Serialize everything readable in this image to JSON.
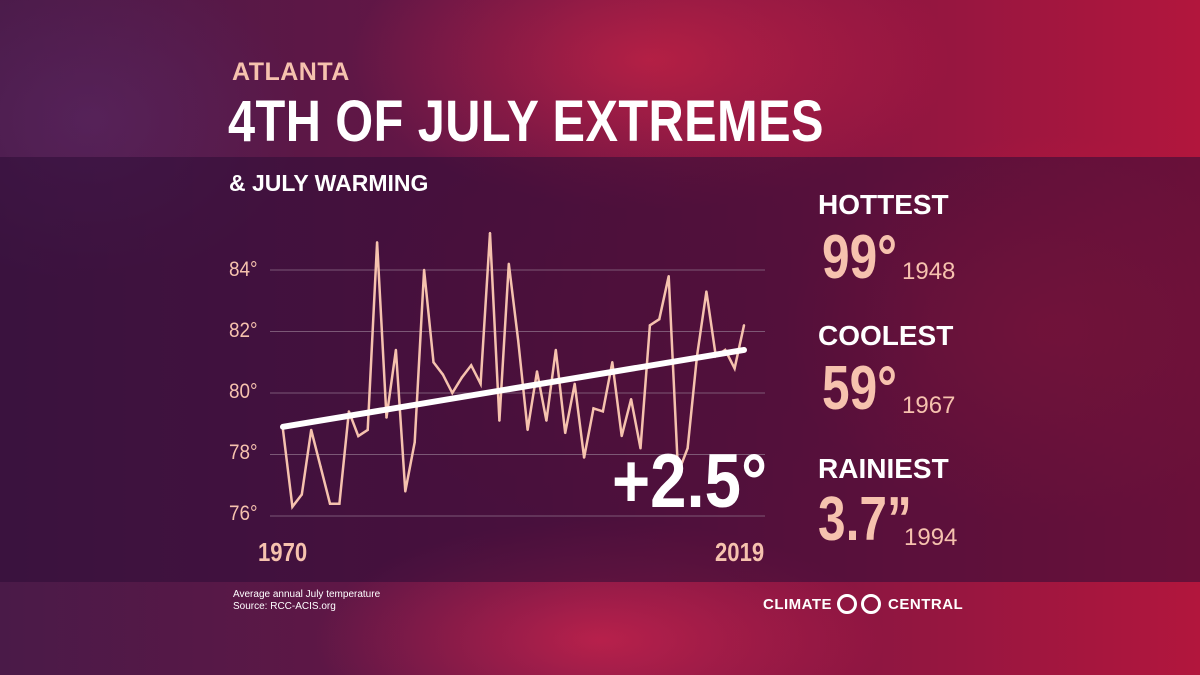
{
  "header": {
    "city": "ATLANTA",
    "title": "4TH OF JULY EXTREMES",
    "subtitle": "& JULY WARMING"
  },
  "chart_data": {
    "type": "line",
    "title": "",
    "xlabel": "",
    "ylabel": "",
    "xlim": [
      1970,
      2019
    ],
    "ylim": [
      75.5,
      86
    ],
    "y_ticks": [
      76,
      78,
      80,
      82,
      84
    ],
    "y_tick_labels": [
      "76°",
      "78°",
      "80°",
      "82°",
      "84°"
    ],
    "x_tick_labels": [
      "1970",
      "2019"
    ],
    "grid": true,
    "legend": "none",
    "series": [
      {
        "x": [
          1970,
          1971,
          1972,
          1973,
          1974,
          1975,
          1976,
          1977,
          1978,
          1979,
          1980,
          1981,
          1982,
          1983,
          1984,
          1985,
          1986,
          1987,
          1988,
          1989,
          1990,
          1991,
          1992,
          1993,
          1994,
          1995,
          1996,
          1997,
          1998,
          1999,
          2000,
          2001,
          2002,
          2003,
          2004,
          2005,
          2006,
          2007,
          2008,
          2009,
          2010,
          2011,
          2012,
          2013,
          2014,
          2015,
          2016,
          2017,
          2018,
          2019
        ],
        "values": [
          78.8,
          76.3,
          76.7,
          78.8,
          77.6,
          76.4,
          76.4,
          79.4,
          78.6,
          78.8,
          84.9,
          79.2,
          81.4,
          76.8,
          78.4,
          84.0,
          81.0,
          80.6,
          80.0,
          80.5,
          80.9,
          80.3,
          85.2,
          79.1,
          84.2,
          81.7,
          78.8,
          80.7,
          79.1,
          81.4,
          78.7,
          80.3,
          77.9,
          79.5,
          79.4,
          81.0,
          78.6,
          79.8,
          78.2,
          82.2,
          82.4,
          83.8,
          77.4,
          78.2,
          81.2,
          83.3,
          81.2,
          81.4,
          80.8,
          82.2
        ]
      }
    ],
    "trend": {
      "start": [
        1970,
        78.9
      ],
      "end": [
        2019,
        81.4
      ],
      "change_label": "+2.5°"
    }
  },
  "stats": [
    {
      "label": "HOTTEST",
      "value": "99°",
      "year": "1948"
    },
    {
      "label": "COOLEST",
      "value": "59°",
      "year": "1967"
    },
    {
      "label": "RAINIEST",
      "value": "3.7”",
      "year": "1994"
    }
  ],
  "footer": {
    "note_line1": "Average annual July temperature",
    "note_line2": "Source: RCC-ACIS.org",
    "logo_left": "CLIMATE",
    "logo_right": "CENTRAL"
  },
  "colors": {
    "line": "#f6c2ae",
    "trend": "#ffffff",
    "grid": "#8a6a85"
  }
}
